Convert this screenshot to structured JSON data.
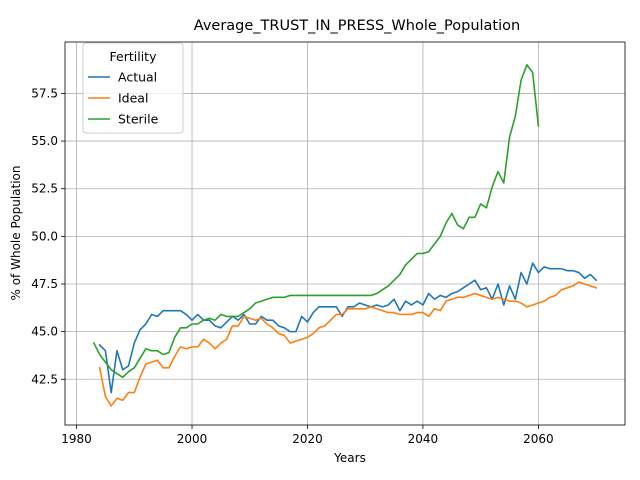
{
  "chart_data": {
    "type": "line",
    "title": "Average_TRUST_IN_PRESS_Whole_Population",
    "xlabel": "Years",
    "ylabel": "% of Whole Population",
    "xlim": [
      1978,
      2075
    ],
    "ylim": [
      40.1,
      60.2
    ],
    "xticks": [
      1980,
      2000,
      2020,
      2040,
      2060
    ],
    "yticks": [
      42.5,
      45.0,
      47.5,
      50.0,
      52.5,
      55.0,
      57.5
    ],
    "ytick_labels": [
      "42.5",
      "45.0",
      "47.5",
      "50.0",
      "52.5",
      "55.0",
      "57.5"
    ],
    "grid": true,
    "legend": {
      "title": "Fertility",
      "location": "upper-left"
    },
    "series": [
      {
        "name": "Actual",
        "color": "#1f77b4",
        "x": [
          1984,
          1985,
          1986,
          1987,
          1988,
          1989,
          1990,
          1991,
          1992,
          1993,
          1994,
          1995,
          1996,
          1997,
          1998,
          1999,
          2000,
          2001,
          2002,
          2003,
          2004,
          2005,
          2006,
          2007,
          2008,
          2009,
          2010,
          2011,
          2012,
          2013,
          2014,
          2015,
          2016,
          2017,
          2018,
          2019,
          2020,
          2021,
          2022,
          2023,
          2024,
          2025,
          2026,
          2027,
          2028,
          2029,
          2030,
          2031,
          2032,
          2033,
          2034,
          2035,
          2036,
          2037,
          2038,
          2039,
          2040,
          2041,
          2042,
          2043,
          2044,
          2045,
          2046,
          2047,
          2048,
          2049,
          2050,
          2051,
          2052,
          2053,
          2054,
          2055,
          2056,
          2057,
          2058,
          2059,
          2060,
          2061,
          2062,
          2063,
          2064,
          2065,
          2066,
          2067,
          2068,
          2069,
          2070
        ],
        "values": [
          44.3,
          44.0,
          41.8,
          44.0,
          43.0,
          43.2,
          44.4,
          45.1,
          45.4,
          45.9,
          45.8,
          46.1,
          46.1,
          46.1,
          46.1,
          45.9,
          45.6,
          45.9,
          45.6,
          45.6,
          45.3,
          45.2,
          45.5,
          45.8,
          45.6,
          45.9,
          45.4,
          45.4,
          45.8,
          45.6,
          45.6,
          45.3,
          45.2,
          45.0,
          45.0,
          45.8,
          45.5,
          46.0,
          46.3,
          46.3,
          46.3,
          46.3,
          45.8,
          46.3,
          46.3,
          46.5,
          46.4,
          46.3,
          46.4,
          46.3,
          46.4,
          46.7,
          46.1,
          46.6,
          46.4,
          46.6,
          46.4,
          47.0,
          46.7,
          46.9,
          46.8,
          47.0,
          47.1,
          47.3,
          47.5,
          47.7,
          47.2,
          47.3,
          46.7,
          47.5,
          46.4,
          47.4,
          46.7,
          48.1,
          47.5,
          48.6,
          48.1,
          48.4,
          48.3,
          48.3,
          48.3,
          48.2,
          48.2,
          48.1,
          47.8,
          48.0,
          47.7
        ]
      },
      {
        "name": "Ideal",
        "color": "#ff7f0e",
        "x": [
          1984,
          1985,
          1986,
          1987,
          1988,
          1989,
          1990,
          1991,
          1992,
          1993,
          1994,
          1995,
          1996,
          1997,
          1998,
          1999,
          2000,
          2001,
          2002,
          2003,
          2004,
          2005,
          2006,
          2007,
          2008,
          2009,
          2010,
          2011,
          2012,
          2013,
          2014,
          2015,
          2016,
          2017,
          2018,
          2019,
          2020,
          2021,
          2022,
          2023,
          2024,
          2025,
          2026,
          2027,
          2028,
          2029,
          2030,
          2031,
          2032,
          2033,
          2034,
          2035,
          2036,
          2037,
          2038,
          2039,
          2040,
          2041,
          2042,
          2043,
          2044,
          2045,
          2046,
          2047,
          2048,
          2049,
          2050,
          2051,
          2052,
          2053,
          2054,
          2055,
          2056,
          2057,
          2058,
          2059,
          2060,
          2061,
          2062,
          2063,
          2064,
          2065,
          2066,
          2067,
          2068,
          2069,
          2070
        ],
        "values": [
          43.1,
          41.6,
          41.1,
          41.5,
          41.4,
          41.8,
          41.8,
          42.6,
          43.3,
          43.4,
          43.5,
          43.1,
          43.1,
          43.7,
          44.2,
          44.1,
          44.2,
          44.2,
          44.6,
          44.4,
          44.1,
          44.4,
          44.6,
          45.3,
          45.3,
          45.8,
          45.7,
          45.6,
          45.7,
          45.4,
          45.2,
          44.9,
          44.8,
          44.4,
          44.5,
          44.6,
          44.7,
          44.9,
          45.2,
          45.3,
          45.6,
          45.9,
          45.9,
          46.2,
          46.2,
          46.2,
          46.2,
          46.3,
          46.2,
          46.1,
          46.0,
          46.0,
          45.9,
          45.9,
          45.9,
          46.0,
          46.0,
          45.8,
          46.2,
          46.1,
          46.6,
          46.7,
          46.8,
          46.8,
          46.9,
          47.0,
          46.9,
          46.8,
          46.7,
          46.8,
          46.7,
          46.6,
          46.6,
          46.5,
          46.3,
          46.4,
          46.5,
          46.6,
          46.8,
          46.9,
          47.2,
          47.3,
          47.4,
          47.6,
          47.5,
          47.4,
          47.3
        ]
      },
      {
        "name": "Sterile",
        "color": "#2ca02c",
        "x": [
          1983,
          1984,
          1985,
          1986,
          1987,
          1988,
          1989,
          1990,
          1991,
          1992,
          1993,
          1994,
          1995,
          1996,
          1997,
          1998,
          1999,
          2000,
          2001,
          2002,
          2003,
          2004,
          2005,
          2006,
          2007,
          2008,
          2009,
          2010,
          2011,
          2012,
          2013,
          2014,
          2015,
          2016,
          2017,
          2018,
          2019,
          2020,
          2021,
          2022,
          2023,
          2024,
          2025,
          2026,
          2027,
          2028,
          2029,
          2030,
          2031,
          2032,
          2033,
          2034,
          2035,
          2036,
          2037,
          2038,
          2039,
          2040,
          2041,
          2042,
          2043,
          2044,
          2045,
          2046,
          2047,
          2048,
          2049,
          2050,
          2051,
          2052,
          2053,
          2054,
          2055,
          2056,
          2057,
          2058,
          2059,
          2060
        ],
        "values": [
          44.4,
          43.8,
          43.4,
          43.0,
          42.8,
          42.6,
          42.9,
          43.1,
          43.6,
          44.1,
          44.0,
          44.0,
          43.8,
          43.9,
          44.7,
          45.2,
          45.2,
          45.4,
          45.4,
          45.6,
          45.7,
          45.6,
          45.9,
          45.8,
          45.8,
          45.8,
          46.0,
          46.2,
          46.5,
          46.6,
          46.7,
          46.8,
          46.8,
          46.8,
          46.9,
          46.9,
          46.9,
          46.9,
          46.9,
          46.9,
          46.9,
          46.9,
          46.9,
          46.9,
          46.9,
          46.9,
          46.9,
          46.9,
          46.9,
          47.0,
          47.2,
          47.4,
          47.7,
          48.0,
          48.5,
          48.8,
          49.1,
          49.1,
          49.2,
          49.6,
          50.0,
          50.7,
          51.2,
          50.6,
          50.4,
          51.0,
          51.0,
          51.7,
          51.5,
          52.6,
          53.4,
          52.8,
          55.2,
          56.3,
          58.2,
          59.0,
          58.6,
          55.8
        ]
      }
    ]
  }
}
